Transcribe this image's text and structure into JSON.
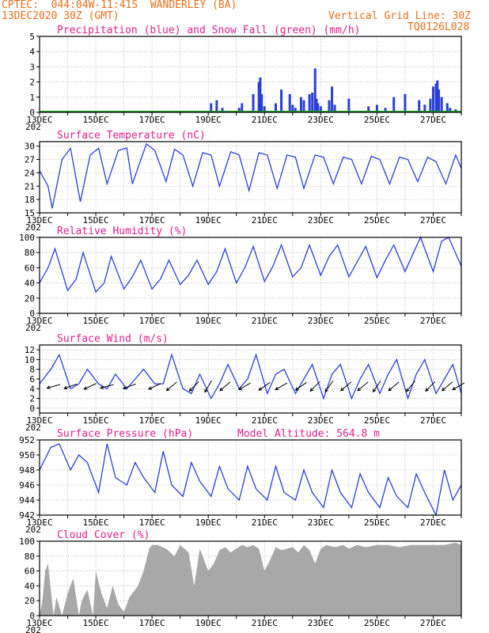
{
  "header": {
    "line1_left": "CPTEC:  044:04W-11:41S  WANDERLEY (BA)",
    "line2_left": "13DEC2020 30Z (GMT)",
    "line2_right": "Vertical Grid Line: 30Z",
    "line3_right": "TQ0126L028"
  },
  "x_axis": {
    "day_start": 13,
    "day_end": 28,
    "tick_labels": [
      "13DEC",
      "15DEC",
      "17DEC",
      "19DEC",
      "21DEC",
      "23DEC",
      "25DEC",
      "27DEC"
    ],
    "stub_label": "202"
  },
  "colors": {
    "line": "#2b3fd6",
    "snow": "#19a01e",
    "cloud": "#a8a8a8",
    "header": "#e8701c",
    "title": "#e0208c"
  },
  "chart_data": [
    {
      "type": "bar",
      "title": "Precipitation (blue) and Snow Fall (green) (mm/h)",
      "ylim": [
        0,
        5
      ],
      "yticks": [
        "0",
        "1",
        "2",
        "3",
        "4",
        "5"
      ],
      "series": [
        {
          "name": "Precipitation",
          "x": [
            19.1,
            19.3,
            19.5,
            20.1,
            20.2,
            20.6,
            20.8,
            20.85,
            20.9,
            21.0,
            21.4,
            21.6,
            21.9,
            22.0,
            22.1,
            22.3,
            22.4,
            22.6,
            22.7,
            22.8,
            22.85,
            22.9,
            23.0,
            23.3,
            23.4,
            23.5,
            24.0,
            24.4,
            24.7,
            25.0,
            25.3,
            25.6,
            26.0,
            26.5,
            26.7,
            26.9,
            27.0,
            27.1,
            27.15,
            27.2,
            27.3,
            27.5,
            27.6,
            27.8
          ],
          "values": [
            0.6,
            0.8,
            0.3,
            0.3,
            0.6,
            1.2,
            2.0,
            2.3,
            1.2,
            0.4,
            0.6,
            1.5,
            1.2,
            0.5,
            0.3,
            1.0,
            0.8,
            1.2,
            1.3,
            2.9,
            0.9,
            0.6,
            0.4,
            0.8,
            1.7,
            0.5,
            0.9,
            0.1,
            0.4,
            0.5,
            0.3,
            1.0,
            1.2,
            0.8,
            0.5,
            0.9,
            1.7,
            1.9,
            2.1,
            1.5,
            1.0,
            0.6,
            0.3,
            0.2
          ]
        },
        {
          "name": "Snow Fall",
          "values": []
        }
      ]
    },
    {
      "type": "line",
      "title": "Surface Temperature (nC)",
      "ylim": [
        15,
        31
      ],
      "yticks": [
        "15",
        "18",
        "21",
        "24",
        "27",
        "30"
      ],
      "x": [
        13.0,
        13.3,
        13.45,
        13.8,
        14.1,
        14.45,
        14.8,
        15.1,
        15.4,
        15.8,
        16.1,
        16.3,
        16.8,
        17.1,
        17.5,
        17.8,
        18.1,
        18.45,
        18.8,
        19.1,
        19.4,
        19.8,
        20.1,
        20.45,
        20.8,
        21.1,
        21.45,
        21.8,
        22.1,
        22.4,
        22.8,
        23.1,
        23.45,
        23.8,
        24.1,
        24.45,
        24.8,
        25.1,
        25.45,
        25.8,
        26.1,
        26.45,
        26.8,
        27.1,
        27.45,
        27.8,
        28.0
      ],
      "values": [
        24.5,
        21,
        16,
        27,
        29.5,
        17.5,
        28,
        29.5,
        21.5,
        29,
        29.6,
        21.5,
        30.5,
        29,
        22,
        29.3,
        28,
        21,
        28.5,
        28,
        21,
        28.7,
        28,
        20,
        28.5,
        28,
        20.5,
        28,
        27.5,
        20.5,
        28,
        27.5,
        21.5,
        27.5,
        27,
        21.5,
        27.7,
        27,
        21.5,
        27.5,
        27,
        22,
        27.5,
        26.5,
        21.5,
        28,
        25
      ]
    },
    {
      "type": "line",
      "title": "Relative Humidity (%)",
      "ylim": [
        0,
        100
      ],
      "yticks": [
        "0",
        "20",
        "40",
        "60",
        "80",
        "100"
      ],
      "x": [
        13.0,
        13.3,
        13.55,
        14.0,
        14.3,
        14.55,
        15.0,
        15.3,
        15.55,
        16.0,
        16.3,
        16.6,
        17.0,
        17.3,
        17.6,
        18.0,
        18.3,
        18.6,
        19.0,
        19.3,
        19.6,
        20.0,
        20.3,
        20.6,
        21.0,
        21.3,
        21.6,
        22.0,
        22.3,
        22.6,
        23.0,
        23.3,
        23.6,
        24.0,
        24.3,
        24.6,
        25.0,
        25.3,
        25.6,
        26.0,
        26.3,
        26.55,
        27.0,
        27.3,
        27.55,
        28.0
      ],
      "values": [
        40,
        60,
        85,
        30,
        45,
        80,
        28,
        40,
        75,
        32,
        48,
        70,
        32,
        45,
        70,
        38,
        50,
        70,
        38,
        55,
        85,
        40,
        60,
        88,
        42,
        62,
        90,
        48,
        60,
        90,
        50,
        75,
        90,
        48,
        68,
        88,
        47,
        70,
        90,
        55,
        80,
        100,
        55,
        95,
        100,
        62
      ]
    },
    {
      "type": "line",
      "title": "Surface Wind (m/s)",
      "ylim": [
        -1,
        13
      ],
      "yticks": [
        "0",
        "2",
        "4",
        "6",
        "8",
        "10",
        "12"
      ],
      "x": [
        13.0,
        13.4,
        13.7,
        14.1,
        14.4,
        14.7,
        15.1,
        15.4,
        15.7,
        16.1,
        16.4,
        16.7,
        17.1,
        17.4,
        17.7,
        18.1,
        18.4,
        18.7,
        19.1,
        19.4,
        19.7,
        20.1,
        20.4,
        20.7,
        21.1,
        21.4,
        21.7,
        22.1,
        22.4,
        22.7,
        23.1,
        23.4,
        23.7,
        24.1,
        24.4,
        24.7,
        25.1,
        25.4,
        25.7,
        26.1,
        26.4,
        26.7,
        27.1,
        27.4,
        27.7,
        28.0
      ],
      "values": [
        5,
        8,
        11,
        4,
        5,
        8,
        5,
        4,
        7,
        4,
        6,
        8,
        5,
        5,
        11,
        4,
        3,
        7,
        2,
        5,
        9,
        4,
        6,
        11,
        3,
        7,
        8,
        3,
        6,
        9,
        2,
        7,
        9,
        2,
        6,
        9,
        3,
        7,
        10,
        2,
        7,
        10,
        3,
        6,
        9,
        3
      ],
      "arrows_x": [
        13.5,
        14.1,
        14.8,
        15.4,
        16.2,
        17.1,
        17.7,
        18.5,
        19.0,
        19.6,
        20.3,
        21.0,
        21.6,
        22.3,
        22.8,
        23.3,
        23.9,
        24.5,
        25.0,
        25.6,
        26.2,
        26.9,
        27.5,
        27.9
      ],
      "arrows_dir": [
        -15,
        -20,
        -25,
        -15,
        -20,
        -25,
        -40,
        -45,
        -60,
        -40,
        -30,
        -35,
        -30,
        -35,
        -45,
        -55,
        -40,
        -40,
        -55,
        -40,
        -50,
        -45,
        -40,
        -30
      ]
    },
    {
      "type": "line",
      "title": "Surface Pressure (hPa)",
      "subtitle": "Model Altitude: 564.8  m",
      "ylim": [
        942,
        952
      ],
      "yticks": [
        "942",
        "944",
        "946",
        "948",
        "950",
        "952"
      ],
      "x": [
        13.0,
        13.4,
        13.7,
        14.1,
        14.4,
        14.7,
        15.1,
        15.4,
        15.7,
        16.1,
        16.4,
        16.7,
        17.1,
        17.4,
        17.7,
        18.1,
        18.4,
        18.7,
        19.1,
        19.4,
        19.7,
        20.1,
        20.4,
        20.7,
        21.1,
        21.4,
        21.7,
        22.1,
        22.4,
        22.7,
        23.1,
        23.4,
        23.7,
        24.1,
        24.4,
        24.7,
        25.1,
        25.4,
        25.7,
        26.1,
        26.4,
        26.7,
        27.1,
        27.4,
        27.7,
        28.0
      ],
      "values": [
        948,
        951,
        951.5,
        948,
        950,
        949,
        945,
        951.5,
        947,
        946,
        949,
        947,
        945,
        950.5,
        946,
        944.5,
        949,
        946.5,
        944.5,
        948.5,
        945.5,
        944,
        948.5,
        945.5,
        944,
        948.5,
        945,
        944,
        948,
        945,
        943,
        948,
        945,
        943,
        947.5,
        945,
        943,
        947,
        944.5,
        943,
        947.5,
        945,
        942,
        948,
        944,
        946
      ]
    },
    {
      "type": "area",
      "title": "Cloud Cover (%)",
      "ylim": [
        0,
        100
      ],
      "yticks": [
        "0",
        "20",
        "40",
        "60",
        "80",
        "100"
      ],
      "x": [
        13.0,
        13.1,
        13.2,
        13.3,
        13.5,
        13.6,
        13.8,
        14.0,
        14.2,
        14.4,
        14.5,
        14.7,
        14.9,
        15.0,
        15.2,
        15.4,
        15.6,
        15.8,
        16.0,
        16.2,
        16.5,
        16.7,
        16.9,
        17.0,
        17.2,
        17.5,
        17.8,
        18.0,
        18.3,
        18.5,
        18.7,
        19.0,
        19.2,
        19.4,
        19.6,
        19.8,
        20.0,
        20.2,
        20.4,
        20.6,
        20.8,
        21.0,
        21.2,
        21.4,
        21.6,
        21.8,
        22.0,
        22.2,
        22.4,
        22.6,
        22.8,
        23.0,
        23.2,
        23.5,
        23.8,
        24.0,
        24.3,
        24.6,
        25.0,
        25.4,
        25.8,
        26.2,
        26.6,
        27.0,
        27.4,
        27.8,
        28.0
      ],
      "values": [
        0,
        20,
        60,
        70,
        0,
        25,
        0,
        30,
        50,
        0,
        20,
        35,
        0,
        60,
        30,
        10,
        40,
        15,
        5,
        25,
        40,
        60,
        90,
        95,
        95,
        90,
        80,
        95,
        85,
        40,
        90,
        60,
        70,
        88,
        92,
        85,
        90,
        95,
        92,
        95,
        90,
        60,
        75,
        92,
        88,
        90,
        92,
        85,
        95,
        88,
        70,
        90,
        95,
        92,
        95,
        90,
        95,
        92,
        95,
        95,
        92,
        95,
        95,
        95,
        95,
        98,
        95
      ]
    }
  ]
}
